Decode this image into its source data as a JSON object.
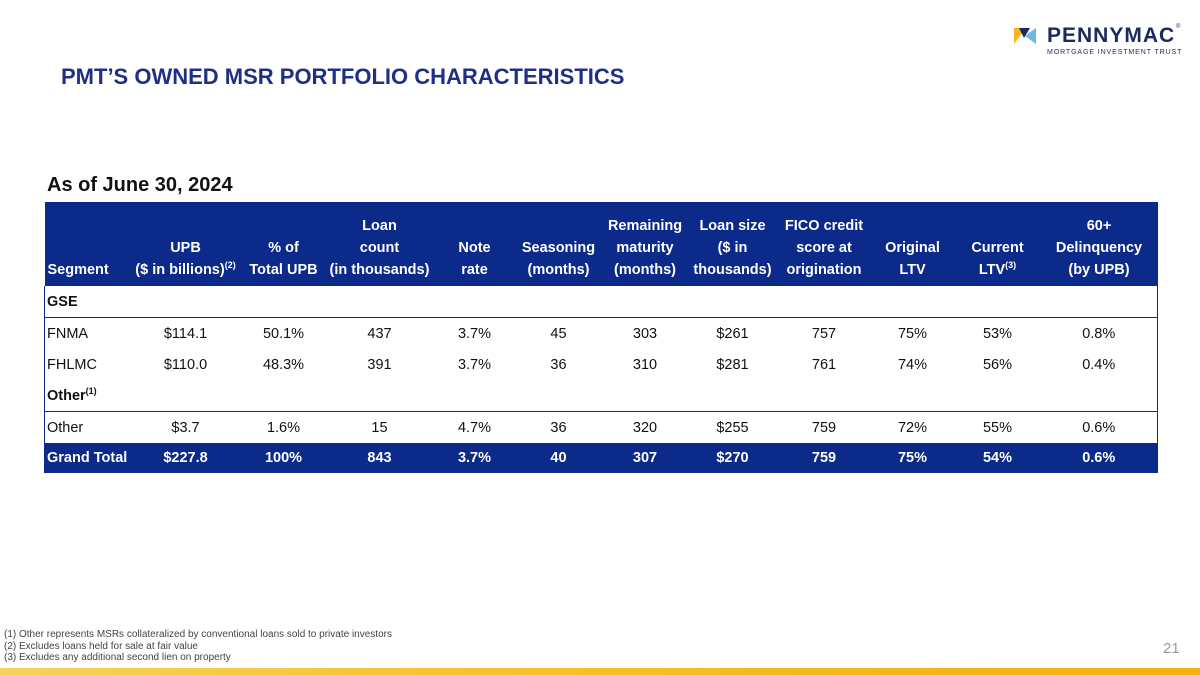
{
  "logo": {
    "name": "PENNYMAC",
    "registered": "®",
    "tagline": "MORTGAGE INVESTMENT TRUST"
  },
  "title": "PMT’S OWNED MSR PORTFOLIO CHARACTERISTICS",
  "as_of": "As of June 30, 2024",
  "table": {
    "headers": [
      {
        "lines": [
          "Segment"
        ]
      },
      {
        "lines": [
          "UPB",
          "($ in billions)"
        ],
        "sup": "(2)"
      },
      {
        "lines": [
          "% of",
          "Total UPB"
        ]
      },
      {
        "lines": [
          "Loan",
          "count",
          "(in thousands)"
        ]
      },
      {
        "lines": [
          "Note",
          "rate"
        ]
      },
      {
        "lines": [
          "Seasoning",
          "(months)"
        ]
      },
      {
        "lines": [
          "Remaining",
          "maturity",
          "(months)"
        ]
      },
      {
        "lines": [
          "Loan size",
          "($ in",
          "thousands)"
        ]
      },
      {
        "lines": [
          "FICO credit",
          "score at",
          "origination"
        ]
      },
      {
        "lines": [
          "Original",
          "LTV"
        ]
      },
      {
        "lines": [
          "Current",
          "LTV"
        ],
        "sup": "(3)"
      },
      {
        "lines": [
          "60+",
          "Delinquency",
          "(by UPB)"
        ]
      }
    ],
    "groups": [
      {
        "label": "GSE",
        "sup": ""
      },
      {
        "label": "Other",
        "sup": "(1)"
      }
    ],
    "rows": {
      "fnma": [
        "FNMA",
        "$114.1",
        "50.1%",
        "437",
        "3.7%",
        "45",
        "303",
        "$261",
        "757",
        "75%",
        "53%",
        "0.8%"
      ],
      "fhlmc": [
        "FHLMC",
        "$110.0",
        "48.3%",
        "391",
        "3.7%",
        "36",
        "310",
        "$281",
        "761",
        "74%",
        "56%",
        "0.4%"
      ],
      "other": [
        "Other",
        "$3.7",
        "1.6%",
        "15",
        "4.7%",
        "36",
        "320",
        "$255",
        "759",
        "72%",
        "55%",
        "0.6%"
      ],
      "total": [
        "Grand Total",
        "$227.8",
        "100%",
        "843",
        "3.7%",
        "40",
        "307",
        "$270",
        "759",
        "75%",
        "54%",
        "0.6%"
      ]
    }
  },
  "footnotes": [
    "(1) Other represents MSRs collateralized by conventional loans sold to private investors",
    "(2) Excludes loans held for sale at fair value",
    "(3) Excludes any additional second lien on property"
  ],
  "page_number": "21",
  "colors": {
    "navy": "#0b2a8a",
    "title_blue": "#1f2f86",
    "gold": "#f4b81c"
  }
}
